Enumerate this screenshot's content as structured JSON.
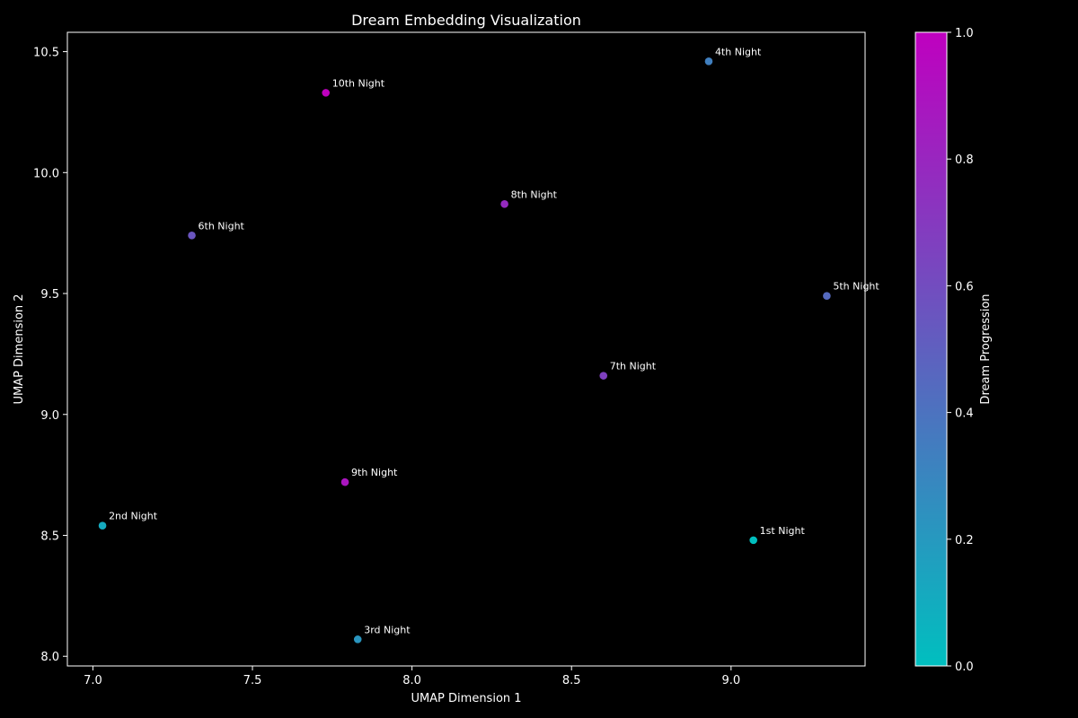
{
  "chart_data": {
    "type": "scatter",
    "title": "Dream Embedding Visualization",
    "xlabel": "UMAP Dimension 1",
    "ylabel": "UMAP Dimension 2",
    "xlim": [
      6.92,
      9.42
    ],
    "ylim": [
      7.96,
      10.58
    ],
    "xticks": [
      7.0,
      7.5,
      8.0,
      8.5,
      9.0
    ],
    "xtick_labels": [
      "7.0",
      "7.5",
      "8.0",
      "8.5",
      "9.0"
    ],
    "yticks": [
      8.0,
      8.5,
      9.0,
      9.5,
      10.0,
      10.5
    ],
    "ytick_labels": [
      "8.0",
      "8.5",
      "9.0",
      "9.5",
      "10.0",
      "10.5"
    ],
    "grid": false,
    "colorbar": {
      "label": "Dream Progression",
      "range": [
        0.0,
        1.0
      ],
      "ticks": [
        0.0,
        0.2,
        0.4,
        0.6,
        0.8,
        1.0
      ],
      "tick_labels": [
        "0.0",
        "0.2",
        "0.4",
        "0.6",
        "0.8",
        "1.0"
      ],
      "colormap_start": "#00bfbf",
      "colormap_end": "#bf00bf"
    },
    "points": [
      {
        "label": "1st Night",
        "x": 9.07,
        "y": 8.48,
        "c": 0.0
      },
      {
        "label": "2nd Night",
        "x": 7.03,
        "y": 8.54,
        "c": 0.111
      },
      {
        "label": "3rd Night",
        "x": 7.83,
        "y": 8.07,
        "c": 0.222
      },
      {
        "label": "4th Night",
        "x": 8.93,
        "y": 10.46,
        "c": 0.333
      },
      {
        "label": "5th Night",
        "x": 9.3,
        "y": 9.49,
        "c": 0.444
      },
      {
        "label": "6th Night",
        "x": 7.31,
        "y": 9.74,
        "c": 0.556
      },
      {
        "label": "7th Night",
        "x": 8.6,
        "y": 9.16,
        "c": 0.667
      },
      {
        "label": "8th Night",
        "x": 8.29,
        "y": 9.87,
        "c": 0.778
      },
      {
        "label": "9th Night",
        "x": 7.79,
        "y": 8.72,
        "c": 0.889
      },
      {
        "label": "10th Night",
        "x": 7.73,
        "y": 10.33,
        "c": 1.0
      }
    ]
  }
}
